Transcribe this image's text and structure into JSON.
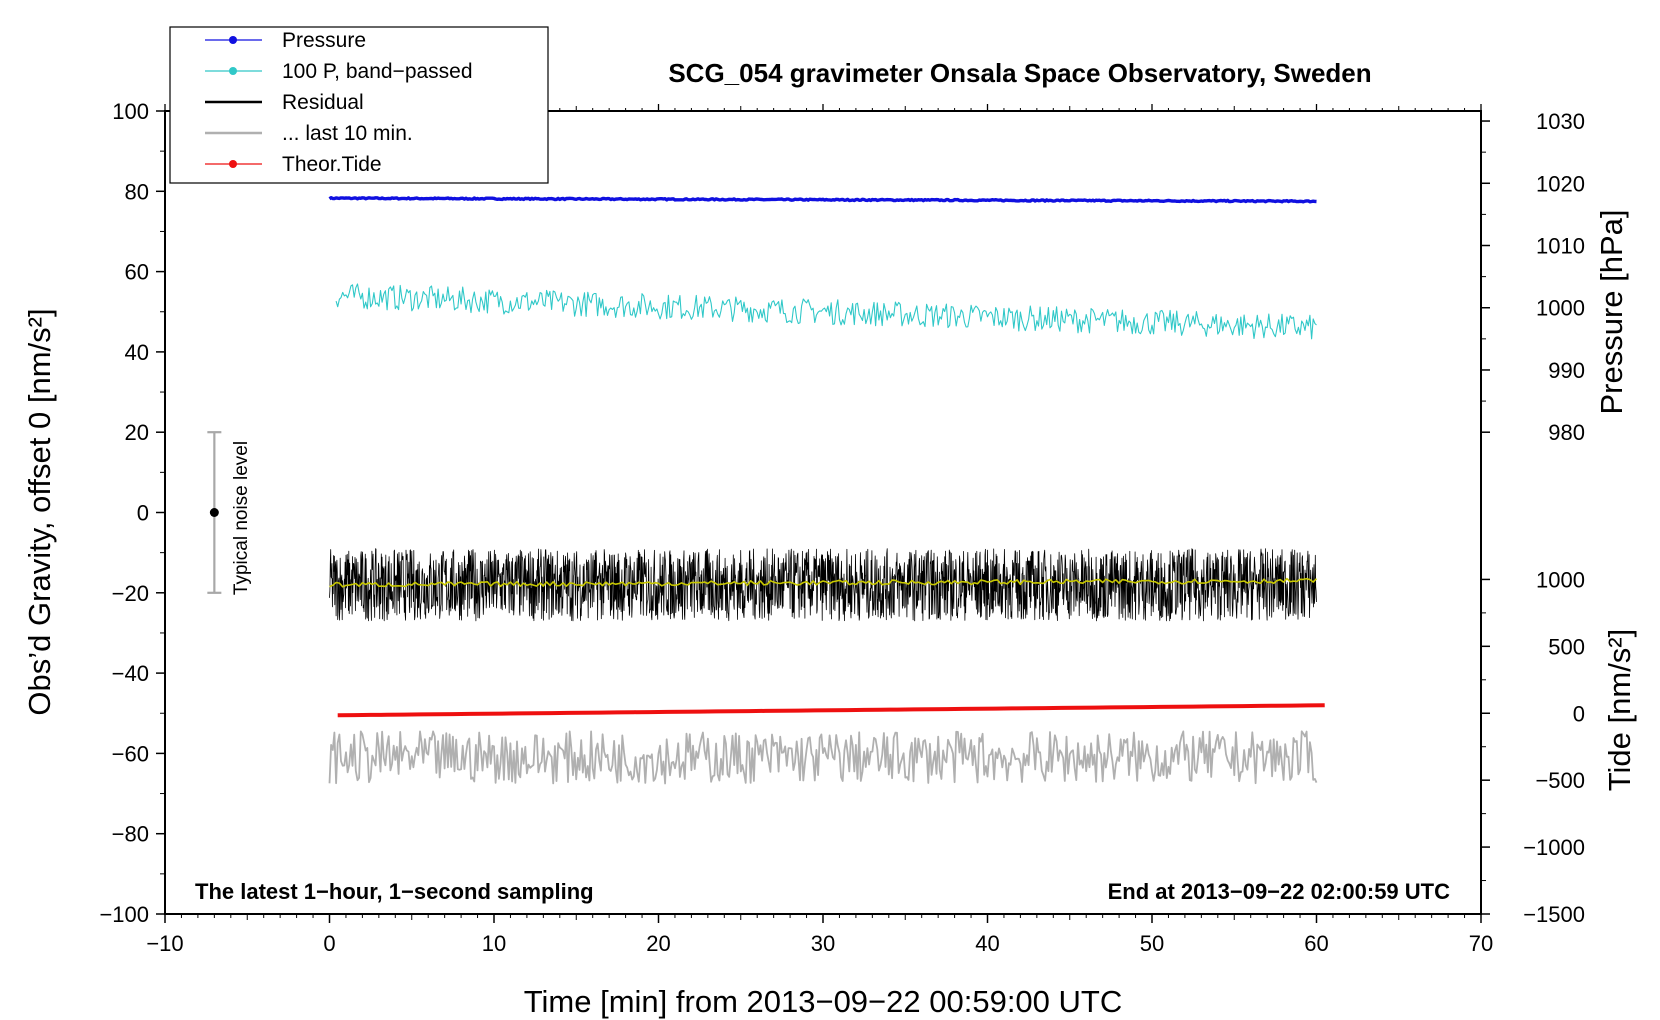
{
  "chart_data": {
    "type": "line",
    "title": "SCG_054 gravimeter Onsala Space Observatory, Sweden",
    "xlabel": "Time [min] from 2013−09−22 00:59:00 UTC",
    "ylabel_left": "Obs’d Gravity, offset 0 [nm/s²]",
    "ylabel_right_top": "Pressure [hPa]",
    "ylabel_right_bottom": "Tide [nm/s²]",
    "xlim": [
      -10,
      70
    ],
    "ylim": [
      -100,
      100
    ],
    "xticks": [
      "−10",
      "0",
      "10",
      "20",
      "30",
      "40",
      "50",
      "60",
      "70"
    ],
    "yticks_left": [
      "−100",
      "−80",
      "−60",
      "−40",
      "−20",
      "0",
      "20",
      "40",
      "60",
      "80",
      "100"
    ],
    "pressure_axis": {
      "ticks": [
        "980",
        "990",
        "1000",
        "1010",
        "1020",
        "1030"
      ],
      "values": [
        980,
        990,
        1000,
        1010,
        1020,
        1030
      ],
      "left_equiv": [
        20,
        35.5,
        51,
        66.5,
        82,
        97.5
      ]
    },
    "tide_axis": {
      "ticks": [
        "−1500",
        "−1000",
        "−500",
        "0",
        "500",
        "1000"
      ],
      "values": [
        -1500,
        -1000,
        -500,
        0,
        500,
        1000
      ],
      "left_equiv": [
        -100,
        -83.33,
        -66.67,
        -50,
        -33.33,
        -16.67
      ]
    },
    "annotation_left": "The latest 1−hour, 1−second sampling",
    "annotation_right": "End at 2013−09−22 02:00:59 UTC",
    "noise_bar": {
      "label": "Typical noise level",
      "x": -7,
      "center": 0,
      "low": -20,
      "high": 20
    },
    "legend": [
      {
        "label": "Pressure",
        "color": "#1010e0",
        "marker": true
      },
      {
        "label": "100 P, band−passed",
        "color": "#30c8c8",
        "marker": true
      },
      {
        "label": "Residual",
        "color": "#000000",
        "marker": false
      },
      {
        "label": "... last 10 min.",
        "color": "#b0b0b0",
        "marker": false
      },
      {
        "label": "Theor.Tide",
        "color": "#ee1010",
        "marker": true
      }
    ],
    "series": [
      {
        "name": "Pressure",
        "color": "#1010e0",
        "unit": "hPa",
        "x_range": [
          0,
          60
        ],
        "start": 1017.6,
        "end": 1017.1,
        "noise": 0.1,
        "step": 0.1
      },
      {
        "name": "100 P, band-passed",
        "color": "#30c8c8",
        "unit": "nm/s²",
        "x_range": [
          0.4,
          60
        ],
        "start": 54,
        "end": 46,
        "noise": 3.2,
        "step": 0.1
      },
      {
        "name": "Residual",
        "color": "#000000",
        "unit": "nm/s²",
        "x_range": [
          0,
          60
        ],
        "start": -18,
        "end": -18,
        "noise": 9,
        "step": 0.025
      },
      {
        "name": "Residual smoothed",
        "color": "#c8c800",
        "unit": "nm/s²",
        "x_range": [
          0,
          60
        ],
        "start": -18,
        "end": -17,
        "noise": 0.6,
        "step": 0.2
      },
      {
        "name": "Theor.Tide",
        "color": "#ee1010",
        "unit": "nm/s²",
        "x_range": [
          0.5,
          60.5
        ],
        "start": -45,
        "end": 40,
        "noise": 0,
        "step": 1
      },
      {
        "name": "... last 10 min.",
        "color": "#b0b0b0",
        "unit": "nm/s²",
        "x_range": [
          0,
          60
        ],
        "start": -61,
        "end": -61,
        "noise": 6.5,
        "step": 0.1
      }
    ]
  }
}
